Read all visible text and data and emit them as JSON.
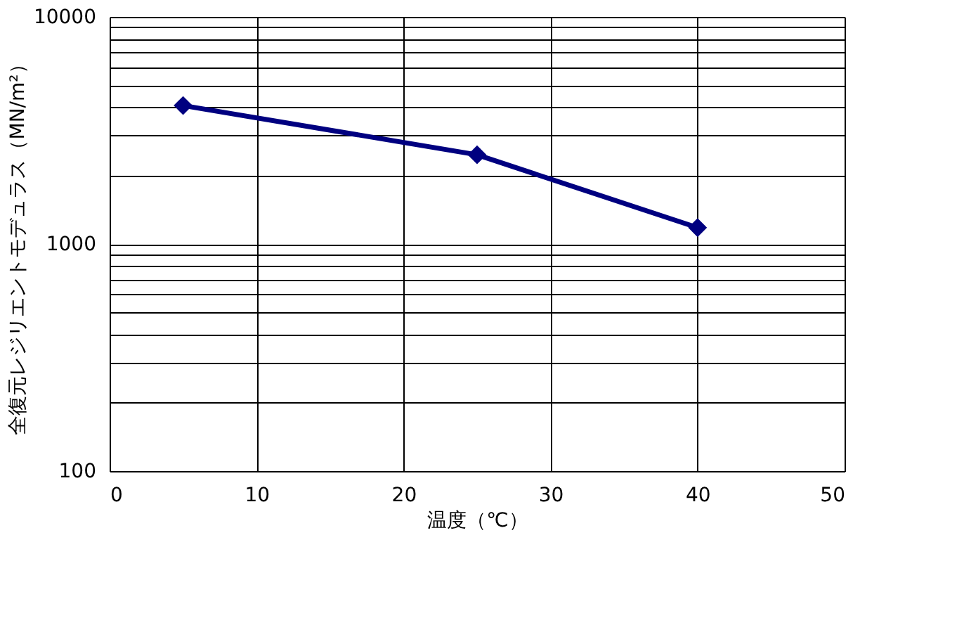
{
  "chart_data": {
    "type": "line",
    "xlabel": "温度（℃）",
    "ylabel": "全復元レジリエントモデュラス（MN/m²）",
    "x": [
      5,
      25,
      40
    ],
    "series": [
      {
        "color": "#000080",
        "values": [
          4070,
          2470,
          1180
        ]
      }
    ],
    "xlim": [
      0,
      50
    ],
    "xticks": [
      0,
      10,
      20,
      30,
      40,
      50
    ],
    "ylim": [
      100,
      10000
    ],
    "yticks": [
      100,
      {
        "value": 200,
        "label": null
      },
      {
        "value": 300,
        "label": null
      },
      {
        "value": 400,
        "label": null
      },
      {
        "value": 500,
        "label": null
      },
      {
        "value": 600,
        "label": null
      },
      {
        "value": 700,
        "label": null
      },
      {
        "value": 800,
        "label": null
      },
      {
        "value": 900,
        "label": null
      },
      1000,
      {
        "value": 2000,
        "label": null
      },
      {
        "value": 3000,
        "label": null
      },
      {
        "value": 4000,
        "label": null
      },
      {
        "value": 5000,
        "label": null
      },
      {
        "value": 6000,
        "label": null
      },
      {
        "value": 7000,
        "label": null
      },
      {
        "value": 8000,
        "label": null
      },
      {
        "value": 9000,
        "label": null
      },
      10000
    ],
    "log": true,
    "grid": true,
    "marker": "diamond",
    "line_style": "solid"
  }
}
